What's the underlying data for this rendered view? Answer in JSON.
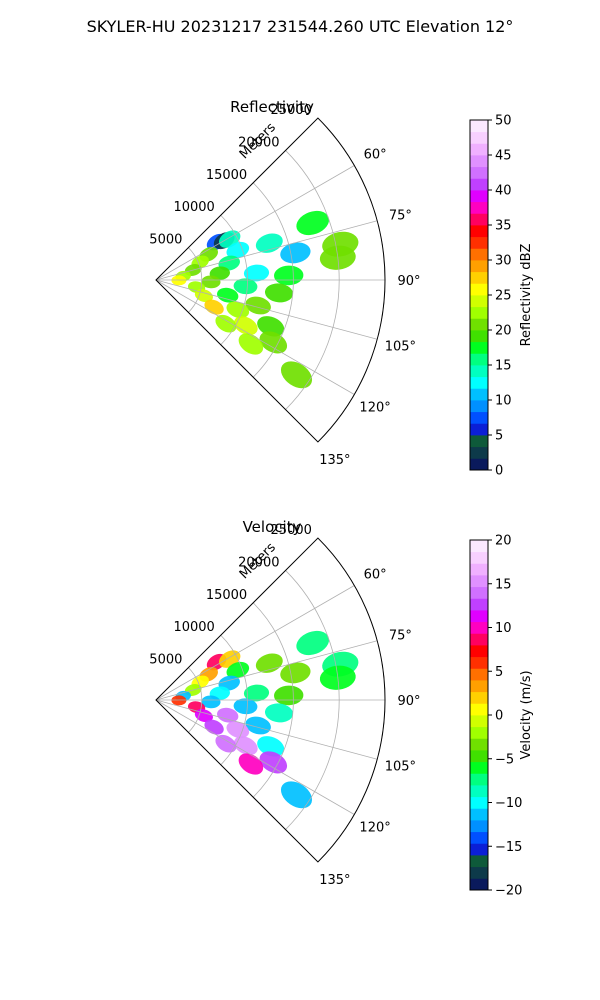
{
  "figure": {
    "title": "SKYLER-HU  20231217  231544.260 UTC Elevation 12°"
  },
  "chart_data": [
    {
      "type": "heatmap",
      "projection": "polar-sector",
      "title": "Reflectivity",
      "range_axis_label": "Meters",
      "range_ticks": [
        5000,
        10000,
        15000,
        20000,
        25000
      ],
      "range_tick_labels": [
        "5000",
        "10000",
        "15000",
        "20000",
        "25000"
      ],
      "theta_ticks": [
        60,
        75,
        90,
        105,
        120,
        135
      ],
      "theta_tick_labels": [
        "60°",
        "75°",
        "90°",
        "105°",
        "120°",
        "135°"
      ],
      "azimuth_range_deg": [
        45,
        135
      ],
      "max_range_m": 25000,
      "grid": true,
      "colorbar": {
        "label": "Reflectivity dBZ",
        "range": [
          0,
          50
        ],
        "ticks": [
          "0",
          "5",
          "10",
          "15",
          "20",
          "25",
          "30",
          "35",
          "40",
          "45",
          "50"
        ],
        "colors": [
          "#0a1a5c",
          "#0d3a4a",
          "#0e5a3a",
          "#0b1fd6",
          "#0050ff",
          "#0090ff",
          "#00c0ff",
          "#00ffff",
          "#00ffc0",
          "#00ff80",
          "#00ff20",
          "#40e000",
          "#70e000",
          "#a0ff00",
          "#d0ff00",
          "#ffff00",
          "#ffd000",
          "#ffa000",
          "#ff7000",
          "#ff3000",
          "#ff0000",
          "#ff0060",
          "#ff00c0",
          "#e000ff",
          "#c040ff",
          "#d070ff",
          "#e090ff",
          "#f0b0ff",
          "#f8d0ff",
          "#fbe8ff"
        ]
      },
      "echoes": [
        {
          "az": 58,
          "r": 7800,
          "value": 8
        },
        {
          "az": 60,
          "r": 8600,
          "value": 3
        },
        {
          "az": 61,
          "r": 9200,
          "value": 14
        },
        {
          "az": 64,
          "r": 6400,
          "value": 20
        },
        {
          "az": 68,
          "r": 5200,
          "value": 22
        },
        {
          "az": 70,
          "r": 9500,
          "value": 12
        },
        {
          "az": 72,
          "r": 13000,
          "value": 14
        },
        {
          "az": 75,
          "r": 4200,
          "value": 21
        },
        {
          "az": 77,
          "r": 8200,
          "value": 15
        },
        {
          "az": 79,
          "r": 15500,
          "value": 10
        },
        {
          "az": 82,
          "r": 3000,
          "value": 22
        },
        {
          "az": 84,
          "r": 7000,
          "value": 19
        },
        {
          "az": 86,
          "r": 11000,
          "value": 12
        },
        {
          "az": 88,
          "r": 14500,
          "value": 18
        },
        {
          "az": 91,
          "r": 2500,
          "value": 26
        },
        {
          "az": 92,
          "r": 6000,
          "value": 20
        },
        {
          "az": 94,
          "r": 9800,
          "value": 15
        },
        {
          "az": 96,
          "r": 13500,
          "value": 19
        },
        {
          "az": 100,
          "r": 4500,
          "value": 22
        },
        {
          "az": 102,
          "r": 8000,
          "value": 18
        },
        {
          "az": 104,
          "r": 11500,
          "value": 20
        },
        {
          "az": 108,
          "r": 5500,
          "value": 24
        },
        {
          "az": 110,
          "r": 9500,
          "value": 22
        },
        {
          "az": 112,
          "r": 13500,
          "value": 19
        },
        {
          "az": 115,
          "r": 7000,
          "value": 27
        },
        {
          "az": 117,
          "r": 11000,
          "value": 24
        },
        {
          "az": 118,
          "r": 14500,
          "value": 20
        },
        {
          "az": 122,
          "r": 9000,
          "value": 23
        },
        {
          "az": 124,
          "r": 12500,
          "value": 22
        },
        {
          "az": 79,
          "r": 20500,
          "value": 20
        },
        {
          "az": 83,
          "r": 20000,
          "value": 21
        },
        {
          "az": 70,
          "r": 18200,
          "value": 18
        },
        {
          "az": 124,
          "r": 18500,
          "value": 20
        }
      ]
    },
    {
      "type": "heatmap",
      "projection": "polar-sector",
      "title": "Velocity",
      "range_axis_label": "Meters",
      "range_ticks": [
        5000,
        10000,
        15000,
        20000,
        25000
      ],
      "range_tick_labels": [
        "5000",
        "10000",
        "15000",
        "20000",
        "25000"
      ],
      "theta_ticks": [
        60,
        75,
        90,
        105,
        120,
        135
      ],
      "theta_tick_labels": [
        "60°",
        "75°",
        "90°",
        "105°",
        "120°",
        "135°"
      ],
      "azimuth_range_deg": [
        45,
        135
      ],
      "max_range_m": 25000,
      "grid": true,
      "colorbar": {
        "label": "Velocity (m/s)",
        "range": [
          -20,
          20
        ],
        "ticks": [
          "−20",
          "−15",
          "−10",
          "−5",
          "0",
          "5",
          "10",
          "15",
          "20"
        ],
        "colors": [
          "#0a1a5c",
          "#0d3a4a",
          "#0e5a3a",
          "#0b1fd6",
          "#0050ff",
          "#0090ff",
          "#00c0ff",
          "#00ffff",
          "#00ffc0",
          "#00ff80",
          "#00ff20",
          "#40e000",
          "#70e000",
          "#a0ff00",
          "#d0ff00",
          "#ffff00",
          "#ffd000",
          "#ffa000",
          "#ff7000",
          "#ff3000",
          "#ff0000",
          "#ff0060",
          "#ff00c0",
          "#e000ff",
          "#c040ff",
          "#d070ff",
          "#e090ff",
          "#f0b0ff",
          "#f8d0ff",
          "#fbe8ff"
        ]
      },
      "echoes": [
        {
          "az": 58,
          "r": 7800,
          "value": 9
        },
        {
          "az": 61,
          "r": 9200,
          "value": 2
        },
        {
          "az": 64,
          "r": 6400,
          "value": 3
        },
        {
          "az": 68,
          "r": 5200,
          "value": 1
        },
        {
          "az": 70,
          "r": 9500,
          "value": -6
        },
        {
          "az": 72,
          "r": 13000,
          "value": -4
        },
        {
          "az": 75,
          "r": 4200,
          "value": -2
        },
        {
          "az": 77,
          "r": 8200,
          "value": -11
        },
        {
          "az": 79,
          "r": 15500,
          "value": -3
        },
        {
          "az": 82,
          "r": 3000,
          "value": -12
        },
        {
          "az": 84,
          "r": 7000,
          "value": -10
        },
        {
          "az": 86,
          "r": 11000,
          "value": -8
        },
        {
          "az": 88,
          "r": 14500,
          "value": -5
        },
        {
          "az": 91,
          "r": 2500,
          "value": 6
        },
        {
          "az": 92,
          "r": 6000,
          "value": -12
        },
        {
          "az": 94,
          "r": 9800,
          "value": -11
        },
        {
          "az": 96,
          "r": 13500,
          "value": -9
        },
        {
          "az": 100,
          "r": 4500,
          "value": 9
        },
        {
          "az": 102,
          "r": 8000,
          "value": 14
        },
        {
          "az": 104,
          "r": 11500,
          "value": -12
        },
        {
          "az": 108,
          "r": 5500,
          "value": 11
        },
        {
          "az": 110,
          "r": 9500,
          "value": 15
        },
        {
          "az": 112,
          "r": 13500,
          "value": -10
        },
        {
          "az": 115,
          "r": 7000,
          "value": 12
        },
        {
          "az": 117,
          "r": 11000,
          "value": 15
        },
        {
          "az": 118,
          "r": 14500,
          "value": 13
        },
        {
          "az": 122,
          "r": 9000,
          "value": 14
        },
        {
          "az": 124,
          "r": 12500,
          "value": 10
        },
        {
          "az": 79,
          "r": 20500,
          "value": -7
        },
        {
          "az": 83,
          "r": 20000,
          "value": -6
        },
        {
          "az": 70,
          "r": 18200,
          "value": -7
        },
        {
          "az": 124,
          "r": 18500,
          "value": -12
        }
      ]
    }
  ]
}
